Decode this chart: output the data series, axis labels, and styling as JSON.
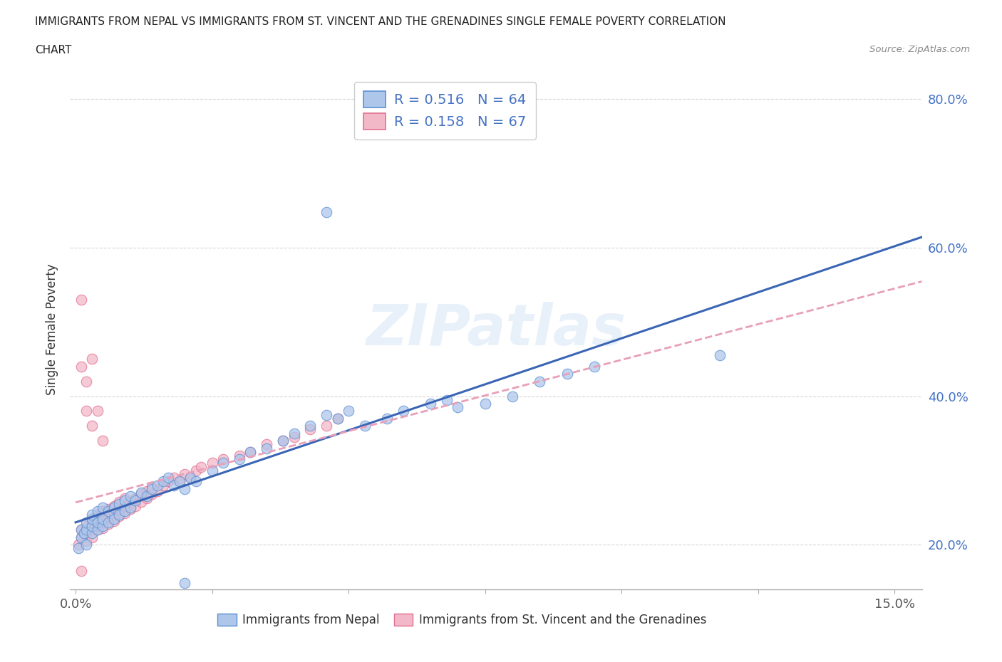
{
  "title_line1": "IMMIGRANTS FROM NEPAL VS IMMIGRANTS FROM ST. VINCENT AND THE GRENADINES SINGLE FEMALE POVERTY CORRELATION",
  "title_line2": "CHART",
  "source": "Source: ZipAtlas.com",
  "ylabel": "Single Female Poverty",
  "xlim": [
    -0.001,
    0.155
  ],
  "ylim": [
    0.14,
    0.84
  ],
  "yticks": [
    0.2,
    0.4,
    0.6,
    0.8
  ],
  "ytick_labels": [
    "20.0%",
    "40.0%",
    "60.0%",
    "80.0%"
  ],
  "xtick_positions": [
    0.0,
    0.025,
    0.05,
    0.075,
    0.1,
    0.125,
    0.15
  ],
  "watermark": "ZIPatlas",
  "legend_R1": "R = 0.516",
  "legend_N1": "N = 64",
  "legend_R2": "R = 0.158",
  "legend_N2": "N = 67",
  "color_nepal_fill": "#aec6ea",
  "color_nepal_edge": "#5b8fd4",
  "color_nepal_line": "#3a65b5",
  "color_svg_fill": "#f2b8c8",
  "color_svg_edge": "#e07090",
  "color_svg_line": "#e8a0b8",
  "legend_label1": "Immigrants from Nepal",
  "legend_label2": "Immigrants from St. Vincent and the Grenadines",
  "nepal_x": [
    0.0005,
    0.001,
    0.001,
    0.0015,
    0.002,
    0.002,
    0.002,
    0.003,
    0.003,
    0.003,
    0.003,
    0.004,
    0.004,
    0.004,
    0.005,
    0.005,
    0.005,
    0.006,
    0.006,
    0.007,
    0.007,
    0.008,
    0.008,
    0.009,
    0.009,
    0.01,
    0.01,
    0.011,
    0.012,
    0.013,
    0.014,
    0.015,
    0.016,
    0.017,
    0.018,
    0.019,
    0.02,
    0.021,
    0.022,
    0.025,
    0.027,
    0.03,
    0.032,
    0.035,
    0.038,
    0.04,
    0.043,
    0.046,
    0.048,
    0.05,
    0.053,
    0.057,
    0.06,
    0.065,
    0.068,
    0.07,
    0.075,
    0.08,
    0.085,
    0.09,
    0.095,
    0.118,
    0.046,
    0.02
  ],
  "nepal_y": [
    0.195,
    0.21,
    0.22,
    0.215,
    0.2,
    0.22,
    0.23,
    0.215,
    0.225,
    0.235,
    0.24,
    0.22,
    0.23,
    0.245,
    0.225,
    0.235,
    0.25,
    0.23,
    0.245,
    0.235,
    0.25,
    0.24,
    0.255,
    0.245,
    0.26,
    0.25,
    0.265,
    0.26,
    0.27,
    0.265,
    0.275,
    0.28,
    0.285,
    0.29,
    0.28,
    0.285,
    0.275,
    0.29,
    0.285,
    0.3,
    0.31,
    0.315,
    0.325,
    0.33,
    0.34,
    0.35,
    0.36,
    0.375,
    0.37,
    0.38,
    0.36,
    0.37,
    0.38,
    0.39,
    0.395,
    0.385,
    0.39,
    0.4,
    0.42,
    0.43,
    0.44,
    0.455,
    0.648,
    0.148
  ],
  "svg_x": [
    0.0005,
    0.001,
    0.001,
    0.0015,
    0.002,
    0.002,
    0.002,
    0.003,
    0.003,
    0.003,
    0.003,
    0.004,
    0.004,
    0.004,
    0.005,
    0.005,
    0.005,
    0.006,
    0.006,
    0.006,
    0.007,
    0.007,
    0.007,
    0.008,
    0.008,
    0.008,
    0.009,
    0.009,
    0.009,
    0.01,
    0.01,
    0.011,
    0.011,
    0.012,
    0.012,
    0.013,
    0.013,
    0.014,
    0.014,
    0.015,
    0.016,
    0.017,
    0.018,
    0.019,
    0.02,
    0.021,
    0.022,
    0.023,
    0.025,
    0.027,
    0.03,
    0.032,
    0.035,
    0.038,
    0.04,
    0.043,
    0.046,
    0.048,
    0.001,
    0.001,
    0.002,
    0.002,
    0.003,
    0.003,
    0.004,
    0.005,
    0.001
  ],
  "svg_y": [
    0.2,
    0.21,
    0.22,
    0.215,
    0.205,
    0.215,
    0.225,
    0.21,
    0.22,
    0.23,
    0.235,
    0.22,
    0.228,
    0.24,
    0.222,
    0.232,
    0.245,
    0.228,
    0.238,
    0.248,
    0.232,
    0.242,
    0.252,
    0.238,
    0.248,
    0.258,
    0.242,
    0.252,
    0.262,
    0.248,
    0.258,
    0.252,
    0.262,
    0.258,
    0.268,
    0.262,
    0.272,
    0.268,
    0.278,
    0.272,
    0.28,
    0.285,
    0.29,
    0.285,
    0.295,
    0.29,
    0.3,
    0.305,
    0.31,
    0.315,
    0.32,
    0.325,
    0.335,
    0.34,
    0.345,
    0.355,
    0.36,
    0.37,
    0.53,
    0.44,
    0.42,
    0.38,
    0.45,
    0.36,
    0.38,
    0.34,
    0.165
  ]
}
